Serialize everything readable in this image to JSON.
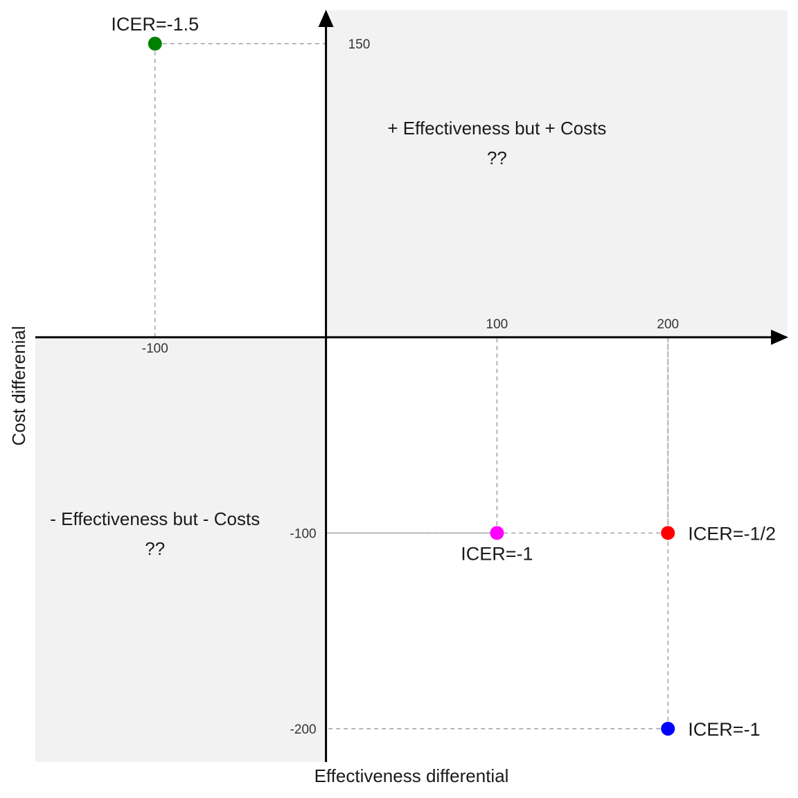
{
  "chart_data": {
    "type": "scatter",
    "xlabel": "Effectiveness differential",
    "ylabel": "Cost differenial",
    "xlim": [
      -170,
      270
    ],
    "ylim": [
      -217,
      167
    ],
    "x_ticks": [
      {
        "value": -100,
        "label": "-100"
      },
      {
        "value": 100,
        "label": "100"
      },
      {
        "value": 200,
        "label": "200"
      }
    ],
    "y_ticks": [
      {
        "value": 150,
        "label": "150"
      },
      {
        "value": -100,
        "label": "-100"
      },
      {
        "value": -200,
        "label": "-200"
      }
    ],
    "points": [
      {
        "x": -100,
        "y": 150,
        "label": "ICER=-1.5",
        "color": "#008000",
        "label_pos": "above"
      },
      {
        "x": 100,
        "y": -100,
        "label": "ICER=-1",
        "color": "#FF00FF",
        "label_pos": "below"
      },
      {
        "x": 200,
        "y": -100,
        "label": "ICER=-1/2",
        "color": "#FF0000",
        "label_pos": "right"
      },
      {
        "x": 200,
        "y": -200,
        "label": "ICER=-1",
        "color": "#0000FF",
        "label_pos": "right"
      }
    ],
    "quadrants": [
      {
        "position": "top-right",
        "line1": "+ Effectiveness but + Costs",
        "line2": "??",
        "shade": "#F2F2F2"
      },
      {
        "position": "bottom-left",
        "line1": "- Effectiveness but - Costs",
        "line2": "??",
        "shade": "#F2F2F2"
      }
    ],
    "grid": false
  }
}
